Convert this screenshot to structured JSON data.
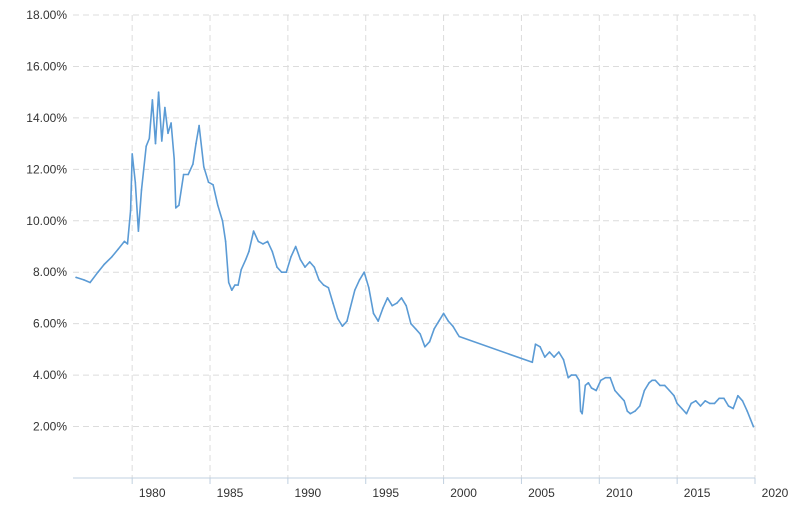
{
  "chart_data": {
    "type": "line",
    "title": "",
    "xlabel": "",
    "ylabel": "",
    "xlim": [
      1976.2,
      2020.0
    ],
    "ylim": [
      0.0,
      18.0
    ],
    "x_ticks": [
      1980,
      1985,
      1990,
      1995,
      2000,
      2005,
      2010,
      2015,
      2020
    ],
    "x_tick_labels": [
      "1980",
      "1985",
      "1990",
      "1995",
      "2000",
      "2005",
      "2010",
      "2015",
      "2020"
    ],
    "y_ticks": [
      2,
      4,
      6,
      8,
      10,
      12,
      14,
      16,
      18
    ],
    "y_tick_labels": [
      "2.00%",
      "4.00%",
      "6.00%",
      "8.00%",
      "10.00%",
      "12.00%",
      "14.00%",
      "16.00%",
      "18.00%"
    ],
    "grid": true,
    "legend": "none",
    "series": [
      {
        "color": "#5b9bd5",
        "x": [
          1976.4,
          1976.9,
          1977.3,
          1977.8,
          1978.2,
          1978.7,
          1979.1,
          1979.5,
          1979.7,
          1979.9,
          1980.0,
          1980.2,
          1980.4,
          1980.6,
          1980.9,
          1981.1,
          1981.3,
          1981.5,
          1981.7,
          1981.9,
          1982.1,
          1982.3,
          1982.5,
          1982.7,
          1982.8,
          1983.0,
          1983.3,
          1983.6,
          1983.9,
          1984.1,
          1984.3,
          1984.6,
          1984.9,
          1985.2,
          1985.5,
          1985.8,
          1986.0,
          1986.2,
          1986.4,
          1986.6,
          1986.8,
          1987.0,
          1987.3,
          1987.5,
          1987.8,
          1988.1,
          1988.4,
          1988.7,
          1989.0,
          1989.3,
          1989.6,
          1989.9,
          1990.2,
          1990.5,
          1990.8,
          1991.1,
          1991.4,
          1991.7,
          1992.0,
          1992.3,
          1992.6,
          1992.9,
          1993.2,
          1993.5,
          1993.8,
          1994.0,
          1994.3,
          1994.6,
          1994.9,
          1995.2,
          1995.5,
          1995.8,
          1996.1,
          1996.4,
          1996.7,
          1997.0,
          1997.3,
          1997.6,
          1997.9,
          1998.2,
          1998.5,
          1998.8,
          1999.1,
          1999.4,
          1999.7,
          2000.0,
          2000.3,
          2000.6,
          2000.9,
          2001.0,
          2005.7,
          2005.9,
          2006.2,
          2006.5,
          2006.8,
          2007.1,
          2007.4,
          2007.7,
          2008.0,
          2008.2,
          2008.5,
          2008.7,
          2008.8,
          2008.9,
          2009.1,
          2009.3,
          2009.5,
          2009.8,
          2010.1,
          2010.4,
          2010.7,
          2011.0,
          2011.3,
          2011.6,
          2011.8,
          2012.0,
          2012.3,
          2012.6,
          2012.9,
          2013.2,
          2013.4,
          2013.6,
          2013.9,
          2014.2,
          2014.5,
          2014.8,
          2015.0,
          2015.3,
          2015.6,
          2015.9,
          2016.2,
          2016.5,
          2016.8,
          2017.1,
          2017.4,
          2017.7,
          2018.0,
          2018.3,
          2018.6,
          2018.9,
          2019.2,
          2019.5,
          2019.7,
          2019.9
        ],
        "y": [
          7.8,
          7.7,
          7.6,
          8.0,
          8.3,
          8.6,
          8.9,
          9.2,
          9.1,
          10.4,
          12.6,
          11.5,
          9.6,
          11.2,
          12.9,
          13.2,
          14.7,
          13.0,
          15.0,
          13.1,
          14.4,
          13.4,
          13.8,
          12.4,
          10.5,
          10.6,
          11.8,
          11.8,
          12.2,
          13.0,
          13.7,
          12.1,
          11.5,
          11.4,
          10.6,
          10.0,
          9.2,
          7.6,
          7.3,
          7.5,
          7.5,
          8.1,
          8.5,
          8.8,
          9.6,
          9.2,
          9.1,
          9.2,
          8.8,
          8.2,
          8.0,
          8.0,
          8.6,
          9.0,
          8.5,
          8.2,
          8.4,
          8.2,
          7.7,
          7.5,
          7.4,
          6.8,
          6.2,
          5.9,
          6.1,
          6.6,
          7.3,
          7.7,
          8.0,
          7.4,
          6.4,
          6.1,
          6.6,
          7.0,
          6.7,
          6.8,
          7.0,
          6.7,
          6.0,
          5.8,
          5.6,
          5.1,
          5.3,
          5.8,
          6.1,
          6.4,
          6.1,
          5.9,
          5.6,
          5.5,
          4.5,
          5.2,
          5.1,
          4.7,
          4.9,
          4.7,
          4.9,
          4.6,
          3.9,
          4.0,
          4.0,
          3.8,
          2.6,
          2.5,
          3.6,
          3.7,
          3.5,
          3.4,
          3.8,
          3.9,
          3.9,
          3.4,
          3.2,
          3.0,
          2.6,
          2.5,
          2.6,
          2.8,
          3.4,
          3.7,
          3.8,
          3.8,
          3.6,
          3.6,
          3.4,
          3.2,
          2.9,
          2.7,
          2.5,
          2.9,
          3.0,
          2.8,
          3.0,
          2.9,
          2.9,
          3.1,
          3.1,
          2.8,
          2.7,
          3.2,
          3.0,
          2.6,
          2.3,
          2.0
        ]
      }
    ]
  }
}
